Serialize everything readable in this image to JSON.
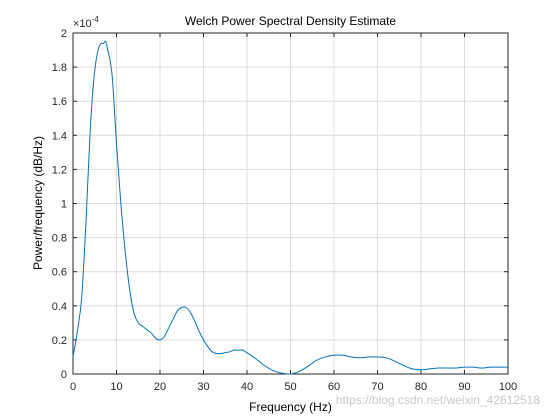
{
  "chart_data": {
    "type": "line",
    "title": "Welch Power Spectral Density Estimate",
    "xlabel": "Frequency (Hz)",
    "ylabel": "Power/frequency (dB/Hz)",
    "exponent_label": "×10",
    "exponent_power": "-4",
    "xlim": [
      0,
      100
    ],
    "ylim": [
      0,
      2
    ],
    "y_scale_factor": 0.0001,
    "grid": true,
    "line_color": "#0072BD",
    "xticks": [
      0,
      10,
      20,
      30,
      40,
      50,
      60,
      70,
      80,
      90,
      100
    ],
    "xtick_labels": [
      "0",
      "10",
      "20",
      "30",
      "40",
      "50",
      "60",
      "70",
      "80",
      "90",
      "100"
    ],
    "yticks": [
      0,
      0.2,
      0.4,
      0.6,
      0.8,
      1,
      1.2,
      1.4,
      1.6,
      1.8,
      2
    ],
    "ytick_labels": [
      "0",
      "0.2",
      "0.4",
      "0.6",
      "0.8",
      "1",
      "1.2",
      "1.4",
      "1.6",
      "1.8",
      "2"
    ],
    "series": [
      {
        "x": [
          0,
          1,
          2,
          3,
          4,
          5,
          6,
          7,
          7.5,
          8,
          9,
          10,
          11,
          12,
          13,
          14,
          15,
          16,
          17,
          18,
          19,
          20,
          21,
          22,
          23,
          24,
          25,
          26,
          27,
          28,
          29,
          30,
          31,
          32,
          33,
          34,
          35,
          36,
          37,
          38,
          39,
          40,
          42,
          44,
          46,
          48,
          50,
          52,
          54,
          56,
          58,
          60,
          62,
          64,
          66,
          68,
          70,
          72,
          74,
          76,
          78,
          80,
          82,
          84,
          86,
          88,
          90,
          92,
          94,
          96,
          98,
          100
        ],
        "y": [
          0.1,
          0.25,
          0.45,
          0.9,
          1.45,
          1.78,
          1.92,
          1.94,
          1.95,
          1.9,
          1.75,
          1.35,
          1.0,
          0.72,
          0.5,
          0.36,
          0.3,
          0.28,
          0.26,
          0.24,
          0.21,
          0.2,
          0.22,
          0.27,
          0.32,
          0.37,
          0.39,
          0.39,
          0.36,
          0.31,
          0.25,
          0.2,
          0.16,
          0.13,
          0.12,
          0.12,
          0.125,
          0.13,
          0.14,
          0.14,
          0.14,
          0.125,
          0.09,
          0.05,
          0.02,
          0.005,
          0.0,
          0.015,
          0.045,
          0.08,
          0.1,
          0.11,
          0.11,
          0.1,
          0.095,
          0.1,
          0.1,
          0.095,
          0.075,
          0.05,
          0.03,
          0.025,
          0.03,
          0.035,
          0.035,
          0.035,
          0.04,
          0.04,
          0.035,
          0.04,
          0.04,
          0.04
        ]
      }
    ]
  },
  "watermark": "https://blog.csdn.net/weixin_42612518"
}
